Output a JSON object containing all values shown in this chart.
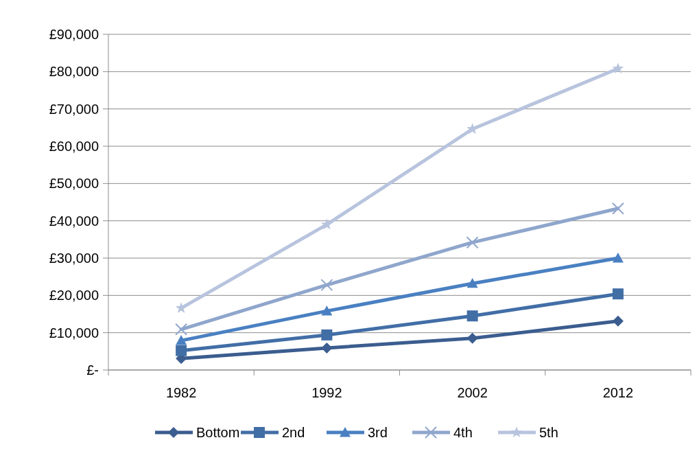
{
  "chart_data": {
    "type": "line",
    "categories": [
      "1982",
      "1992",
      "2002",
      "2012"
    ],
    "series": [
      {
        "name": "Bottom",
        "color": "#3b5d8f",
        "marker": "diamond",
        "values": [
          3100,
          5900,
          8500,
          13100
        ]
      },
      {
        "name": "2nd",
        "color": "#426ea6",
        "marker": "square",
        "values": [
          5200,
          9400,
          14500,
          20400
        ]
      },
      {
        "name": "3rd",
        "color": "#4a80c2",
        "marker": "triangle",
        "values": [
          7900,
          15800,
          23200,
          30000
        ]
      },
      {
        "name": "4th",
        "color": "#8fa6cc",
        "marker": "cross",
        "values": [
          10900,
          22800,
          34200,
          43300
        ]
      },
      {
        "name": "5th",
        "color": "#b8c4de",
        "marker": "star",
        "values": [
          16600,
          39000,
          64600,
          80800
        ]
      }
    ],
    "ylim": [
      0,
      90000
    ],
    "yticks": [
      {
        "value": 0,
        "label": "£-"
      },
      {
        "value": 10000,
        "label": "£10,000"
      },
      {
        "value": 20000,
        "label": "£20,000"
      },
      {
        "value": 30000,
        "label": "£30,000"
      },
      {
        "value": 40000,
        "label": "£40,000"
      },
      {
        "value": 50000,
        "label": "£50,000"
      },
      {
        "value": 60000,
        "label": "£60,000"
      },
      {
        "value": 70000,
        "label": "£70,000"
      },
      {
        "value": 80000,
        "label": "£80,000"
      },
      {
        "value": 90000,
        "label": "£90,000"
      }
    ],
    "grid": "y",
    "legend": "bottom",
    "line_style": "solid"
  }
}
